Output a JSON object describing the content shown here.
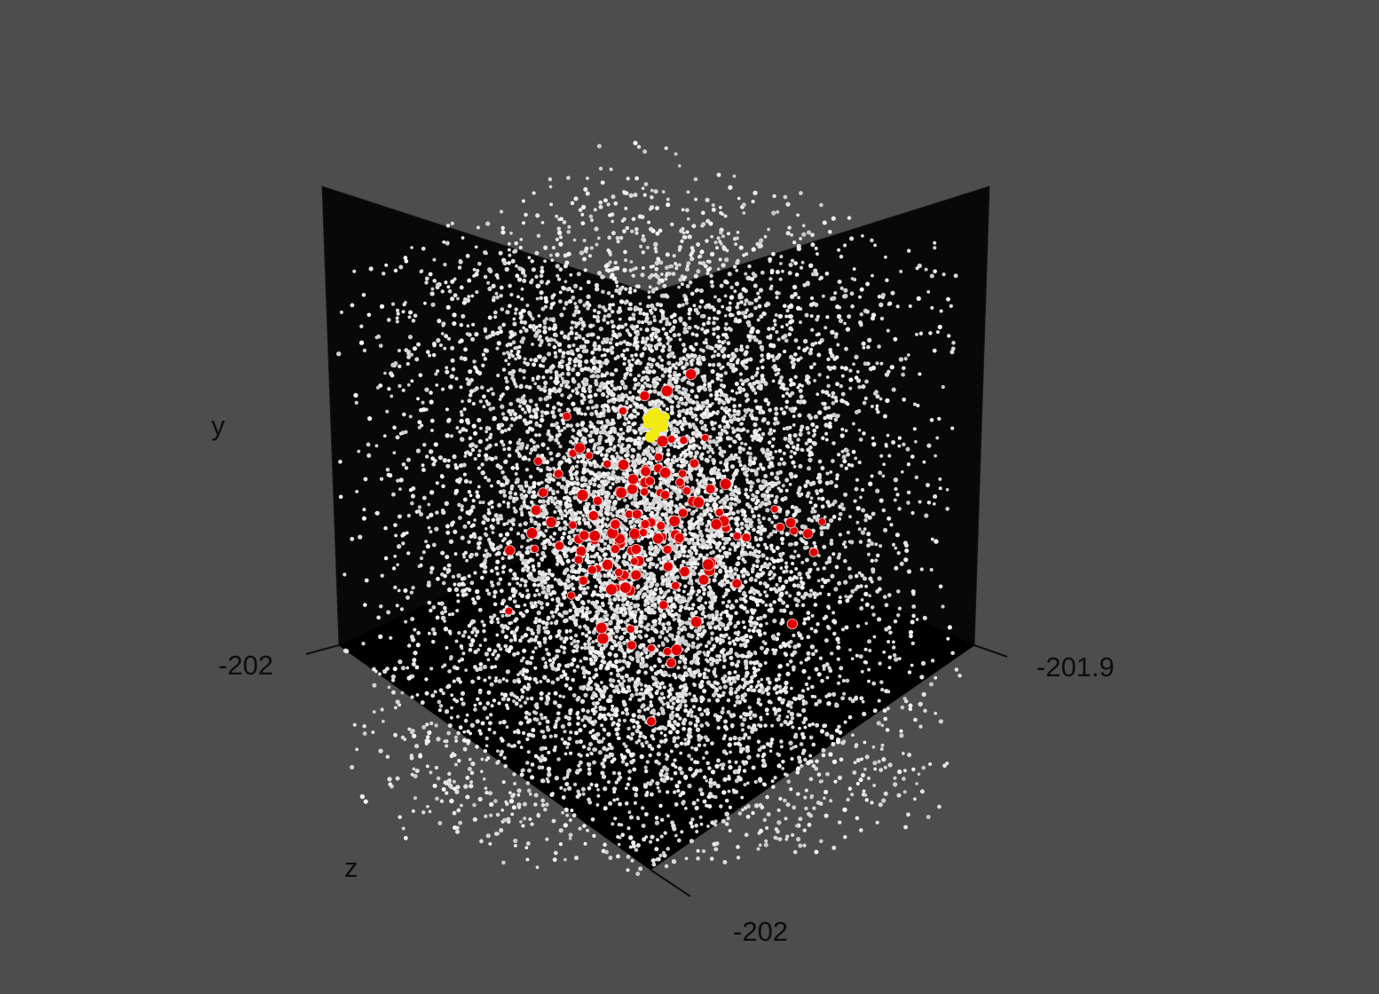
{
  "colors": {
    "background": "#4d4d4d",
    "panel": "#080808",
    "panel_edge": "#141414",
    "tick": "#0d0d0d",
    "label": "#0d0d0d",
    "background_point": "#e6e6e6",
    "member_point": "#e00000",
    "center_point": "#f2ea10"
  },
  "chart_data": {
    "type": "scatter",
    "projection": "3d",
    "title": "",
    "axes": {
      "y": {
        "label": "y",
        "tick_labels": []
      },
      "z": {
        "label": "z",
        "tick_labels": [
          "-202"
        ]
      },
      "left_horizontal": {
        "label": "",
        "tick_labels": [
          "-202"
        ]
      },
      "right_horizontal": {
        "label": "",
        "tick_labels": [
          "-201.9"
        ]
      }
    },
    "grid": false,
    "legend": "none",
    "series": [
      {
        "role": "background",
        "color": "#e6e6e6",
        "approx_count": 9000,
        "distribution": "uniform in box"
      },
      {
        "role": "members",
        "color": "#e00000",
        "approx_count": 130,
        "distribution": "clustered near center"
      },
      {
        "role": "center",
        "color": "#f2ea10",
        "approx_count": 15,
        "distribution": "tight core"
      }
    ]
  }
}
